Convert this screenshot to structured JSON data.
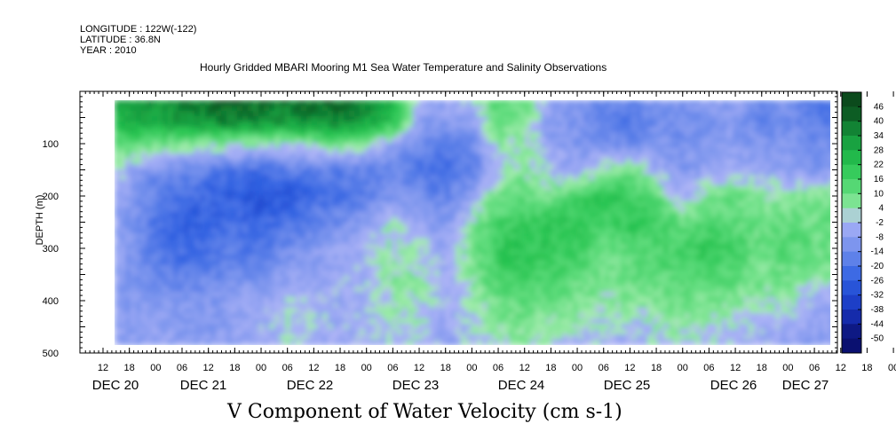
{
  "header": {
    "longitude": "LONGITUDE : 122W(-122)",
    "latitude": "LATITUDE : 36.8N",
    "year": "YEAR : 2010"
  },
  "chart_data": {
    "type": "heatmap",
    "title": "Hourly Gridded MBARI Mooring M1 Sea Water Temperature and Salinity Observations",
    "xlabel": "V Component of Water Velocity (cm s-1)",
    "ylabel": "DEPTH (m)",
    "ylim": [
      500,
      0
    ],
    "y_ticks": [
      100,
      200,
      300,
      400,
      500
    ],
    "x_hour_labels": [
      "12",
      "18",
      "00",
      "06",
      "12",
      "18",
      "00",
      "06",
      "12",
      "18",
      "00",
      "06",
      "12",
      "18",
      "00",
      "06",
      "12",
      "18",
      "00",
      "06",
      "12",
      "18",
      "00",
      "06",
      "12",
      "18",
      "00",
      "06",
      "12",
      "18",
      "00",
      "06"
    ],
    "x_day_labels": [
      "DEC 20",
      "DEC 21",
      "DEC 22",
      "DEC 23",
      "DEC 24",
      "DEC 25",
      "DEC 26",
      "DEC 27"
    ],
    "colorbar_levels": [
      46,
      40,
      34,
      28,
      22,
      16,
      10,
      4,
      -2,
      -8,
      -14,
      -20,
      -26,
      -32,
      -38,
      -44,
      -50
    ],
    "colors": {
      "strong_positive": "#0b4a1c",
      "positive": "#1fbf52",
      "weak_positive": "#a8ecb0",
      "weak_negative": "#aab4f4",
      "negative": "#2f5ee0",
      "strong_negative": "#0a1070"
    },
    "approx_field_grid": {
      "depths_m": [
        25,
        60,
        100,
        150,
        200,
        250,
        300,
        350,
        400,
        450,
        485
      ],
      "times": [
        "DEC 20 12",
        "DEC 20 18",
        "DEC 21 00",
        "DEC 21 06",
        "DEC 21 12",
        "DEC 21 18",
        "DEC 22 00",
        "DEC 22 06",
        "DEC 22 12",
        "DEC 22 18",
        "DEC 23 00",
        "DEC 23 06",
        "DEC 23 12",
        "DEC 23 18",
        "DEC 24 00",
        "DEC 24 06",
        "DEC 24 12",
        "DEC 24 18",
        "DEC 25 00",
        "DEC 25 06",
        "DEC 25 12",
        "DEC 25 18",
        "DEC 26 00",
        "DEC 26 06",
        "DEC 26 12",
        "DEC 26 18",
        "DEC 27 00",
        "DEC 27 06"
      ],
      "values": [
        [
          30,
          32,
          34,
          36,
          40,
          44,
          40,
          38,
          40,
          42,
          34,
          26,
          -4,
          -6,
          -2,
          16,
          10,
          -6,
          -8,
          -14,
          -18,
          -10,
          -12,
          -8,
          -8,
          -14,
          -10,
          -20
        ],
        [
          24,
          26,
          30,
          32,
          34,
          36,
          34,
          32,
          34,
          36,
          30,
          22,
          -8,
          -10,
          -8,
          10,
          6,
          -10,
          -12,
          -16,
          -20,
          -14,
          -14,
          -12,
          -10,
          -16,
          -14,
          -18
        ],
        [
          12,
          14,
          10,
          8,
          4,
          6,
          4,
          2,
          6,
          8,
          6,
          -6,
          -14,
          -16,
          -14,
          4,
          4,
          -6,
          -10,
          -12,
          -14,
          -10,
          -12,
          -10,
          -8,
          -10,
          -10,
          -14
        ],
        [
          6,
          -4,
          -12,
          -14,
          -18,
          -20,
          -22,
          -18,
          -16,
          -18,
          -16,
          -14,
          -20,
          -22,
          -18,
          -2,
          4,
          -2,
          -6,
          4,
          10,
          -4,
          -10,
          -6,
          -4,
          -6,
          -8,
          -10
        ],
        [
          -4,
          -8,
          -18,
          -22,
          -24,
          -26,
          -30,
          -28,
          -22,
          -20,
          -18,
          -10,
          -14,
          -16,
          -6,
          10,
          12,
          8,
          16,
          22,
          18,
          12,
          -4,
          8,
          10,
          4,
          6,
          8
        ],
        [
          -6,
          -10,
          -20,
          -26,
          -24,
          -22,
          -24,
          -20,
          -16,
          -14,
          -8,
          2,
          -6,
          -10,
          4,
          16,
          18,
          20,
          22,
          16,
          20,
          18,
          10,
          14,
          12,
          8,
          12,
          10
        ],
        [
          -2,
          -10,
          -18,
          -22,
          -22,
          -18,
          -20,
          -14,
          -10,
          -6,
          -2,
          4,
          2,
          -6,
          8,
          20,
          22,
          20,
          18,
          10,
          12,
          14,
          16,
          20,
          16,
          10,
          14,
          10
        ],
        [
          -4,
          -12,
          -16,
          -18,
          -16,
          -14,
          -12,
          -8,
          -6,
          -4,
          -2,
          6,
          4,
          -4,
          6,
          16,
          18,
          16,
          12,
          8,
          10,
          12,
          14,
          16,
          12,
          8,
          10,
          6
        ],
        [
          -2,
          -10,
          -8,
          -10,
          -10,
          -8,
          -6,
          -2,
          -2,
          -4,
          -4,
          4,
          2,
          -4,
          2,
          10,
          12,
          10,
          8,
          4,
          6,
          8,
          10,
          8,
          6,
          4,
          4,
          -4
        ],
        [
          -4,
          -8,
          -6,
          -8,
          -10,
          -6,
          -4,
          2,
          -2,
          -4,
          -2,
          2,
          2,
          -6,
          0,
          4,
          8,
          4,
          2,
          0,
          -2,
          2,
          4,
          2,
          0,
          -2,
          -4,
          -6
        ],
        [
          -6,
          -8,
          -6,
          -8,
          -8,
          -6,
          -4,
          0,
          -4,
          -6,
          -4,
          0,
          0,
          -6,
          -2,
          2,
          4,
          0,
          -2,
          -2,
          -4,
          0,
          2,
          0,
          -2,
          -4,
          -6,
          -8
        ]
      ]
    }
  }
}
